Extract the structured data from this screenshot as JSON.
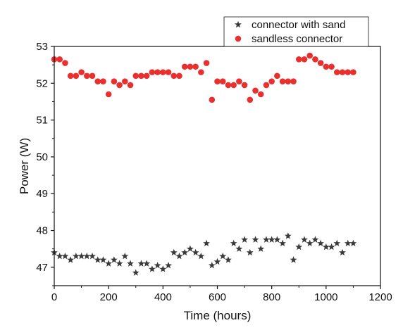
{
  "chart_data": {
    "type": "scatter",
    "title": "",
    "xlabel": "Time (hours)",
    "ylabel": "Power (W)",
    "xlim": [
      0,
      1200
    ],
    "ylim": [
      46.5,
      53
    ],
    "xticks": [
      0,
      200,
      400,
      600,
      800,
      1000,
      1200
    ],
    "yticks": [
      47,
      48,
      49,
      50,
      51,
      52,
      53
    ],
    "xtick_labels": [
      "0",
      "200",
      "400",
      "600",
      "800",
      "1000",
      "1200"
    ],
    "ytick_labels": [
      "47",
      "48",
      "49",
      "50",
      "51",
      "52",
      "53"
    ],
    "grid": false,
    "legend_position": "top-right",
    "series": [
      {
        "name": "connector with sand",
        "marker": "star",
        "color": "#3a3a3a",
        "x": [
          0,
          20,
          40,
          60,
          80,
          100,
          120,
          140,
          160,
          180,
          200,
          220,
          240,
          260,
          280,
          300,
          320,
          340,
          360,
          380,
          400,
          420,
          440,
          460,
          480,
          500,
          520,
          540,
          560,
          580,
          600,
          620,
          640,
          660,
          680,
          700,
          720,
          740,
          760,
          780,
          800,
          820,
          840,
          860,
          880,
          900,
          920,
          940,
          960,
          980,
          1000,
          1020,
          1040,
          1060,
          1080,
          1100
        ],
        "y": [
          47.4,
          47.3,
          47.3,
          47.2,
          47.3,
          47.3,
          47.3,
          47.3,
          47.2,
          47.2,
          47.1,
          47.2,
          47.1,
          47.3,
          47.1,
          46.85,
          47.1,
          47.1,
          46.95,
          47.05,
          46.95,
          47.05,
          47.4,
          47.3,
          47.4,
          47.5,
          47.4,
          47.3,
          47.65,
          47.05,
          47.15,
          47.3,
          47.2,
          47.65,
          47.5,
          47.75,
          47.4,
          47.75,
          47.5,
          47.75,
          47.75,
          47.75,
          47.65,
          47.85,
          47.2,
          47.55,
          47.75,
          47.65,
          47.75,
          47.65,
          47.55,
          47.55,
          47.65,
          47.4,
          47.65,
          47.65
        ]
      },
      {
        "name": "sandless connector",
        "marker": "circle",
        "color": "#e8312f",
        "x": [
          0,
          20,
          40,
          60,
          80,
          100,
          120,
          140,
          160,
          180,
          200,
          220,
          240,
          260,
          280,
          300,
          320,
          340,
          360,
          380,
          400,
          420,
          440,
          460,
          480,
          500,
          520,
          540,
          560,
          580,
          600,
          620,
          640,
          660,
          680,
          700,
          720,
          740,
          760,
          780,
          800,
          820,
          840,
          860,
          880,
          900,
          920,
          940,
          960,
          980,
          1000,
          1020,
          1040,
          1060,
          1080,
          1100
        ],
        "y": [
          52.65,
          52.65,
          52.55,
          52.2,
          52.2,
          52.3,
          52.2,
          52.2,
          52.05,
          52.05,
          51.7,
          52.05,
          51.95,
          52.05,
          51.95,
          52.2,
          52.2,
          52.2,
          52.3,
          52.3,
          52.3,
          52.3,
          52.2,
          52.2,
          52.45,
          52.45,
          52.45,
          52.3,
          52.55,
          51.55,
          52.05,
          52.05,
          51.95,
          51.95,
          52.05,
          51.95,
          51.55,
          51.8,
          51.7,
          51.95,
          52.05,
          52.2,
          52.05,
          52.05,
          52.05,
          52.65,
          52.65,
          52.75,
          52.65,
          52.55,
          52.45,
          52.45,
          52.3,
          52.3,
          52.3,
          52.3
        ]
      }
    ]
  }
}
